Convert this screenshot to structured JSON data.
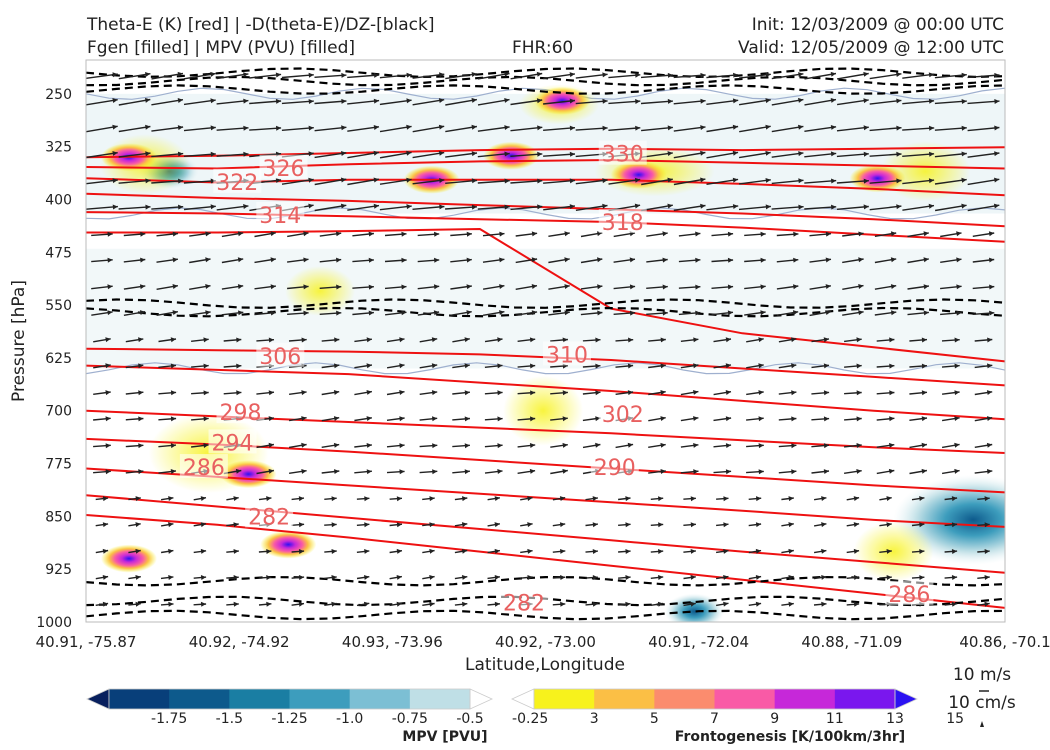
{
  "header": {
    "title_left_1": "Theta-E (K) [red] | -D(theta-E)/DZ-[black]",
    "title_left_2": "Fgen [filled] | MPV (PVU) [filled]",
    "title_center": "FHR:60",
    "title_right_1": "Init: 12/03/2009 @ 00:00 UTC",
    "title_right_2": "Valid: 12/05/2009 @ 12:00 UTC"
  },
  "chart_data": {
    "type": "cross-section",
    "xlabel": "Latitude,Longitude",
    "ylabel": "Pressure [hPa]",
    "ylim": [
      1000,
      200
    ],
    "y_ticks": [
      250,
      325,
      400,
      475,
      550,
      625,
      700,
      775,
      850,
      925,
      1000
    ],
    "x_ticks": [
      "40.91, -75.87",
      "40.92, -74.92",
      "40.93, -73.96",
      "40.92, -73.00",
      "40.91, -72.04",
      "40.88, -71.09",
      "40.86, -70.1"
    ],
    "theta_e_contours": [
      {
        "label": "330",
        "p": [
          340,
          338,
          334,
          330,
          328,
          330,
          328,
          326
        ]
      },
      {
        "label": "326",
        "p": [
          354,
          356,
          350,
          346,
          344,
          348,
          352,
          356
        ]
      },
      {
        "label": "322",
        "p": [
          370,
          376,
          372,
          372,
          372,
          378,
          385,
          394
        ]
      },
      {
        "label": "318",
        "p": [
          392,
          398,
          402,
          408,
          414,
          420,
          428,
          438
        ]
      },
      {
        "label": "314",
        "p": [
          418,
          420,
          424,
          428,
          432,
          440,
          450,
          460
        ]
      },
      {
        "label": "310",
        "p": [
          447,
          447,
          445,
          442,
          555,
          590,
          610,
          630
        ]
      },
      {
        "label": "306",
        "p": [
          612,
          614,
          616,
          620,
          628,
          640,
          652,
          664
        ]
      },
      {
        "label": "302",
        "p": [
          636,
          642,
          648,
          660,
          672,
          686,
          700,
          712
        ]
      },
      {
        "label": "298",
        "p": [
          700,
          708,
          716,
          724,
          732,
          742,
          752,
          760
        ]
      },
      {
        "label": "294",
        "p": [
          740,
          748,
          758,
          770,
          782,
          794,
          806,
          816
        ]
      },
      {
        "label": "290",
        "p": [
          782,
          794,
          806,
          818,
          830,
          842,
          855,
          865
        ]
      },
      {
        "label": "286",
        "p": [
          820,
          836,
          852,
          868,
          884,
          900,
          915,
          930
        ]
      },
      {
        "label": "282",
        "p": [
          848,
          862,
          880,
          900,
          920,
          940,
          960,
          980
        ]
      }
    ],
    "theta_e_labels": [
      {
        "text": "330",
        "lon": -72.5,
        "p": 335
      },
      {
        "text": "326",
        "lon": -74.63,
        "p": 355
      },
      {
        "text": "322",
        "lon": -74.92,
        "p": 375
      },
      {
        "text": "314",
        "lon": -74.65,
        "p": 422
      },
      {
        "text": "318",
        "lon": -72.5,
        "p": 432
      },
      {
        "text": "310",
        "lon": -72.85,
        "p": 620
      },
      {
        "text": "306",
        "lon": -74.65,
        "p": 622
      },
      {
        "text": "298",
        "lon": -74.9,
        "p": 702
      },
      {
        "text": "302",
        "lon": -72.5,
        "p": 705
      },
      {
        "text": "294",
        "lon": -74.95,
        "p": 745
      },
      {
        "text": "286",
        "lon": -75.13,
        "p": 780
      },
      {
        "text": "290",
        "lon": -72.55,
        "p": 780
      },
      {
        "text": "282",
        "lon": -74.72,
        "p": 850
      },
      {
        "text": "282",
        "lon": -73.12,
        "p": 972
      },
      {
        "text": "286",
        "lon": -70.7,
        "p": 960
      }
    ],
    "stability_dashed_p": [
      220,
      232,
      244,
      548,
      560,
      942,
      970,
      990
    ],
    "mpv_colorbar": {
      "label": "MPV [PVU]",
      "ticks": [
        "-1.75",
        "-1.5",
        "-1.25",
        "-1.0",
        "-0.75",
        "-0.5",
        "-0.25"
      ],
      "colors": [
        "#08205e",
        "#083f7a",
        "#0d5a8c",
        "#1a7ea3",
        "#3d9dbd",
        "#7cbfd4",
        "#bfdfe6",
        "#ffffff"
      ]
    },
    "fgen_colorbar": {
      "label": "Frontogenesis [K/100km/3hr]",
      "ticks": [
        "3",
        "5",
        "7",
        "9",
        "11",
        "13",
        "15"
      ],
      "colors": [
        "#ffffff",
        "#f7f21c",
        "#fbbf45",
        "#fb8c6e",
        "#f95aa6",
        "#c628d9",
        "#7a17ee",
        "#2b12f2"
      ]
    },
    "fgen_maxima": [
      {
        "lon": -75.6,
        "p": 340
      },
      {
        "lon": -73.7,
        "p": 372
      },
      {
        "lon": -73.2,
        "p": 338
      },
      {
        "lon": -72.4,
        "p": 365
      },
      {
        "lon": -70.9,
        "p": 370
      },
      {
        "lon": -74.85,
        "p": 790
      },
      {
        "lon": -74.6,
        "p": 890
      },
      {
        "lon": -75.6,
        "p": 910
      },
      {
        "lon": -72.88,
        "p": 260
      }
    ],
    "mpv_minima": [
      {
        "lon": -70.3,
        "p": 855
      },
      {
        "lon": -75.35,
        "p": 360
      },
      {
        "lon": -72.05,
        "p": 985
      }
    ],
    "wind_legend": {
      "horizontal": "10 m/s",
      "vertical": "10 cm/s"
    }
  }
}
